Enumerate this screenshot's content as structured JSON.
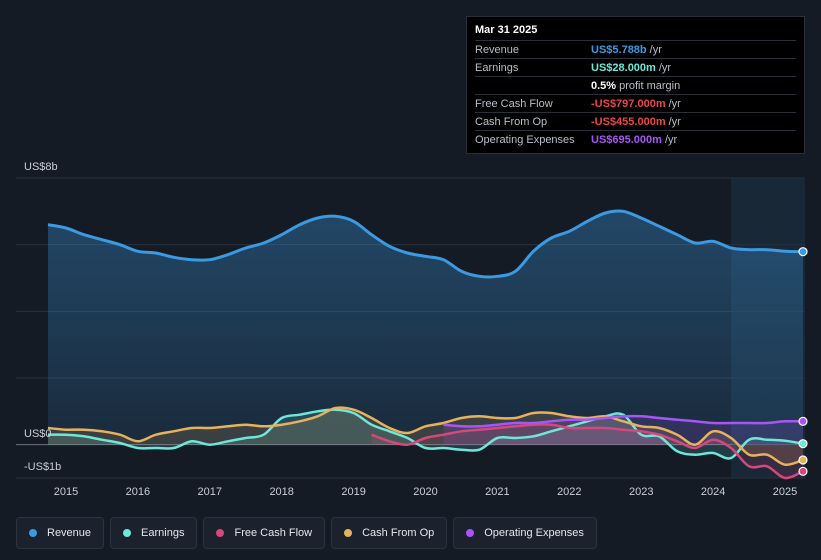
{
  "tooltip": {
    "date": "Mar 31 2025",
    "rows": [
      {
        "label": "Revenue",
        "value": "US$5.788b",
        "unit": "/yr",
        "color": "#3b9ae1"
      },
      {
        "label": "Earnings",
        "value": "US$28.000m",
        "unit": "/yr",
        "color": "#6ee7d9"
      },
      {
        "label": "",
        "value": "0.5%",
        "unit": "profit margin",
        "color": "#ffffff"
      },
      {
        "label": "Free Cash Flow",
        "value": "-US$797.000m",
        "unit": "/yr",
        "color": "#e8474d"
      },
      {
        "label": "Cash From Op",
        "value": "-US$455.000m",
        "unit": "/yr",
        "color": "#e8474d"
      },
      {
        "label": "Operating Expenses",
        "value": "US$695.000m",
        "unit": "/yr",
        "color": "#a855f7"
      }
    ]
  },
  "legend": [
    {
      "label": "Revenue",
      "color": "#3b9ae1"
    },
    {
      "label": "Earnings",
      "color": "#6ee7d9"
    },
    {
      "label": "Free Cash Flow",
      "color": "#d6477e"
    },
    {
      "label": "Cash From Op",
      "color": "#e8b15c"
    },
    {
      "label": "Operating Expenses",
      "color": "#a855f7"
    }
  ],
  "chart_data": {
    "type": "line",
    "y_top_label": "US$8b",
    "y_zero_label": "US$0",
    "y_bottom_label": "-US$1b",
    "ylim": [
      -1,
      8
    ],
    "xlim": [
      2014.7,
      2025.25
    ],
    "x_ticks": [
      "2015",
      "2016",
      "2017",
      "2018",
      "2019",
      "2020",
      "2021",
      "2022",
      "2023",
      "2024",
      "2025"
    ],
    "series": [
      {
        "name": "Revenue",
        "color": "#3b9ae1",
        "fill": true,
        "points": [
          [
            2014.75,
            6.6
          ],
          [
            2015.0,
            6.5
          ],
          [
            2015.25,
            6.3
          ],
          [
            2015.5,
            6.15
          ],
          [
            2015.75,
            6.0
          ],
          [
            2016.0,
            5.8
          ],
          [
            2016.25,
            5.75
          ],
          [
            2016.5,
            5.62
          ],
          [
            2016.75,
            5.55
          ],
          [
            2017.0,
            5.55
          ],
          [
            2017.25,
            5.7
          ],
          [
            2017.5,
            5.9
          ],
          [
            2017.75,
            6.05
          ],
          [
            2018.0,
            6.3
          ],
          [
            2018.25,
            6.6
          ],
          [
            2018.5,
            6.8
          ],
          [
            2018.75,
            6.85
          ],
          [
            2019.0,
            6.7
          ],
          [
            2019.25,
            6.3
          ],
          [
            2019.5,
            5.95
          ],
          [
            2019.75,
            5.75
          ],
          [
            2020.0,
            5.65
          ],
          [
            2020.25,
            5.55
          ],
          [
            2020.5,
            5.2
          ],
          [
            2020.75,
            5.05
          ],
          [
            2021.0,
            5.05
          ],
          [
            2021.25,
            5.2
          ],
          [
            2021.5,
            5.8
          ],
          [
            2021.75,
            6.2
          ],
          [
            2022.0,
            6.4
          ],
          [
            2022.25,
            6.7
          ],
          [
            2022.5,
            6.95
          ],
          [
            2022.75,
            7.0
          ],
          [
            2023.0,
            6.8
          ],
          [
            2023.25,
            6.55
          ],
          [
            2023.5,
            6.3
          ],
          [
            2023.75,
            6.05
          ],
          [
            2024.0,
            6.1
          ],
          [
            2024.25,
            5.9
          ],
          [
            2024.5,
            5.85
          ],
          [
            2024.75,
            5.85
          ],
          [
            2025.0,
            5.8
          ],
          [
            2025.25,
            5.79
          ]
        ]
      },
      {
        "name": "Earnings",
        "color": "#6ee7d9",
        "fill": true,
        "points": [
          [
            2014.75,
            0.3
          ],
          [
            2015.0,
            0.3
          ],
          [
            2015.25,
            0.25
          ],
          [
            2015.5,
            0.15
          ],
          [
            2015.75,
            0.05
          ],
          [
            2016.0,
            -0.1
          ],
          [
            2016.25,
            -0.1
          ],
          [
            2016.5,
            -0.1
          ],
          [
            2016.75,
            0.1
          ],
          [
            2017.0,
            0.0
          ],
          [
            2017.25,
            0.1
          ],
          [
            2017.5,
            0.2
          ],
          [
            2017.75,
            0.3
          ],
          [
            2018.0,
            0.8
          ],
          [
            2018.25,
            0.9
          ],
          [
            2018.5,
            1.0
          ],
          [
            2018.75,
            1.05
          ],
          [
            2019.0,
            0.95
          ],
          [
            2019.25,
            0.6
          ],
          [
            2019.5,
            0.4
          ],
          [
            2019.75,
            0.2
          ],
          [
            2020.0,
            -0.1
          ],
          [
            2020.25,
            -0.1
          ],
          [
            2020.5,
            -0.15
          ],
          [
            2020.75,
            -0.15
          ],
          [
            2021.0,
            0.2
          ],
          [
            2021.25,
            0.2
          ],
          [
            2021.5,
            0.25
          ],
          [
            2021.75,
            0.4
          ],
          [
            2022.0,
            0.55
          ],
          [
            2022.25,
            0.7
          ],
          [
            2022.5,
            0.85
          ],
          [
            2022.75,
            0.9
          ],
          [
            2023.0,
            0.3
          ],
          [
            2023.25,
            0.25
          ],
          [
            2023.5,
            -0.2
          ],
          [
            2023.75,
            -0.3
          ],
          [
            2024.0,
            -0.25
          ],
          [
            2024.25,
            -0.4
          ],
          [
            2024.5,
            0.15
          ],
          [
            2024.75,
            0.15
          ],
          [
            2025.0,
            0.12
          ],
          [
            2025.25,
            0.03
          ]
        ]
      },
      {
        "name": "Free Cash Flow",
        "color": "#d6477e",
        "fill": true,
        "points": [
          [
            2019.25,
            0.3
          ],
          [
            2019.5,
            0.1
          ],
          [
            2019.75,
            0.0
          ],
          [
            2020.0,
            0.2
          ],
          [
            2020.25,
            0.3
          ],
          [
            2020.5,
            0.4
          ],
          [
            2020.75,
            0.45
          ],
          [
            2021.0,
            0.5
          ],
          [
            2021.25,
            0.55
          ],
          [
            2021.5,
            0.6
          ],
          [
            2021.75,
            0.6
          ],
          [
            2022.0,
            0.5
          ],
          [
            2022.25,
            0.5
          ],
          [
            2022.5,
            0.5
          ],
          [
            2022.75,
            0.45
          ],
          [
            2023.0,
            0.4
          ],
          [
            2023.25,
            0.3
          ],
          [
            2023.5,
            0.1
          ],
          [
            2023.75,
            -0.1
          ],
          [
            2024.0,
            0.15
          ],
          [
            2024.25,
            -0.1
          ],
          [
            2024.5,
            -0.65
          ],
          [
            2024.75,
            -0.65
          ],
          [
            2025.0,
            -1.0
          ],
          [
            2025.25,
            -0.8
          ]
        ]
      },
      {
        "name": "Cash From Op",
        "color": "#e8b15c",
        "fill": true,
        "points": [
          [
            2014.75,
            0.5
          ],
          [
            2015.0,
            0.45
          ],
          [
            2015.25,
            0.45
          ],
          [
            2015.5,
            0.4
          ],
          [
            2015.75,
            0.3
          ],
          [
            2016.0,
            0.1
          ],
          [
            2016.25,
            0.3
          ],
          [
            2016.5,
            0.4
          ],
          [
            2016.75,
            0.5
          ],
          [
            2017.0,
            0.5
          ],
          [
            2017.25,
            0.55
          ],
          [
            2017.5,
            0.6
          ],
          [
            2017.75,
            0.55
          ],
          [
            2018.0,
            0.6
          ],
          [
            2018.25,
            0.7
          ],
          [
            2018.5,
            0.85
          ],
          [
            2018.75,
            1.1
          ],
          [
            2019.0,
            1.05
          ],
          [
            2019.25,
            0.8
          ],
          [
            2019.5,
            0.5
          ],
          [
            2019.75,
            0.35
          ],
          [
            2020.0,
            0.55
          ],
          [
            2020.25,
            0.65
          ],
          [
            2020.5,
            0.8
          ],
          [
            2020.75,
            0.85
          ],
          [
            2021.0,
            0.8
          ],
          [
            2021.25,
            0.8
          ],
          [
            2021.5,
            0.95
          ],
          [
            2021.75,
            0.95
          ],
          [
            2022.0,
            0.85
          ],
          [
            2022.25,
            0.8
          ],
          [
            2022.5,
            0.85
          ],
          [
            2022.75,
            0.7
          ],
          [
            2023.0,
            0.55
          ],
          [
            2023.25,
            0.5
          ],
          [
            2023.5,
            0.3
          ],
          [
            2023.75,
            0.0
          ],
          [
            2024.0,
            0.4
          ],
          [
            2024.25,
            0.2
          ],
          [
            2024.5,
            -0.3
          ],
          [
            2024.75,
            -0.3
          ],
          [
            2025.0,
            -0.6
          ],
          [
            2025.25,
            -0.46
          ]
        ]
      },
      {
        "name": "Operating Expenses",
        "color": "#a855f7",
        "fill": true,
        "points": [
          [
            2020.25,
            0.6
          ],
          [
            2020.5,
            0.55
          ],
          [
            2020.75,
            0.55
          ],
          [
            2021.0,
            0.6
          ],
          [
            2021.25,
            0.65
          ],
          [
            2021.5,
            0.65
          ],
          [
            2021.75,
            0.7
          ],
          [
            2022.0,
            0.75
          ],
          [
            2022.25,
            0.75
          ],
          [
            2022.5,
            0.8
          ],
          [
            2022.75,
            0.85
          ],
          [
            2023.0,
            0.85
          ],
          [
            2023.25,
            0.8
          ],
          [
            2023.5,
            0.75
          ],
          [
            2023.75,
            0.7
          ],
          [
            2024.0,
            0.65
          ],
          [
            2024.25,
            0.65
          ],
          [
            2024.5,
            0.65
          ],
          [
            2024.75,
            0.65
          ],
          [
            2025.0,
            0.7
          ],
          [
            2025.25,
            0.7
          ]
        ]
      }
    ]
  }
}
